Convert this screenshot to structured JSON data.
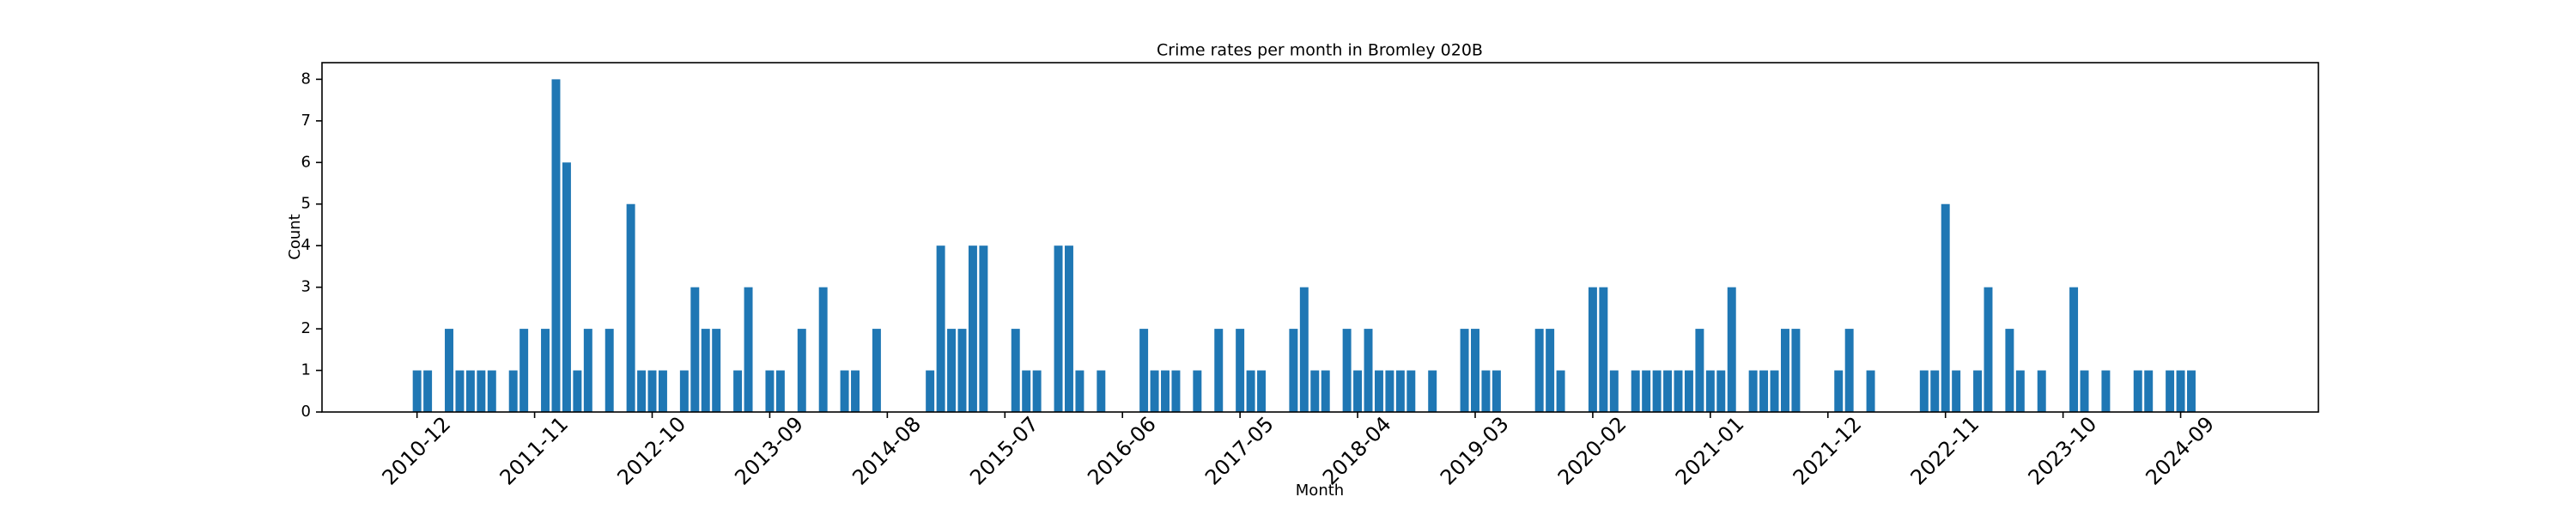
{
  "chart_data": {
    "type": "bar",
    "title": "Crime rates per month in Bromley 020B",
    "x_label": "Month",
    "y_label": "Count",
    "categories": [
      "2010-12",
      null,
      null,
      null,
      null,
      null,
      null,
      null,
      null,
      null,
      null,
      "2011-11",
      null,
      null,
      null,
      null,
      null,
      null,
      null,
      null,
      null,
      null,
      "2012-10",
      null,
      null,
      null,
      null,
      null,
      null,
      null,
      null,
      null,
      null,
      "2013-09",
      null,
      null,
      null,
      null,
      null,
      null,
      null,
      null,
      null,
      null,
      "2014-08",
      null,
      null,
      null,
      null,
      null,
      null,
      null,
      null,
      null,
      null,
      "2015-07",
      null,
      null,
      null,
      null,
      null,
      null,
      null,
      null,
      null,
      null,
      "2016-06",
      null,
      null,
      null,
      null,
      null,
      null,
      null,
      null,
      null,
      null,
      "2017-05",
      null,
      null,
      null,
      null,
      null,
      null,
      null,
      null,
      null,
      null,
      "2018-04",
      null,
      null,
      null,
      null,
      null,
      null,
      null,
      null,
      null,
      null,
      "2019-03",
      null,
      null,
      null,
      null,
      null,
      null,
      null,
      null,
      null,
      null,
      "2020-02",
      null,
      null,
      null,
      null,
      null,
      null,
      null,
      null,
      null,
      null,
      "2021-01",
      null,
      null,
      null,
      null,
      null,
      null,
      null,
      null,
      null,
      null,
      "2021-12",
      null,
      null,
      null,
      null,
      null,
      null,
      null,
      null,
      null,
      null,
      "2022-11",
      null,
      null,
      null,
      null,
      null,
      null,
      null,
      null,
      null,
      null,
      "2023-10",
      null,
      null,
      null,
      null,
      null,
      null,
      null,
      null,
      null,
      null,
      "2024-09",
      null,
      null,
      null,
      null
    ],
    "values": [
      1,
      1,
      0,
      2,
      1,
      1,
      1,
      1,
      0,
      1,
      2,
      0,
      2,
      8,
      6,
      1,
      2,
      0,
      2,
      0,
      5,
      1,
      1,
      1,
      0,
      1,
      3,
      2,
      2,
      0,
      1,
      3,
      0,
      1,
      1,
      0,
      2,
      0,
      3,
      0,
      1,
      1,
      0,
      2,
      0,
      0,
      0,
      0,
      1,
      4,
      2,
      2,
      4,
      4,
      0,
      0,
      2,
      1,
      1,
      0,
      4,
      4,
      1,
      0,
      1,
      0,
      0,
      0,
      2,
      1,
      1,
      1,
      0,
      1,
      0,
      2,
      0,
      2,
      1,
      1,
      0,
      0,
      2,
      3,
      1,
      1,
      0,
      2,
      1,
      2,
      1,
      1,
      1,
      1,
      0,
      1,
      0,
      0,
      2,
      2,
      1,
      1,
      0,
      0,
      0,
      2,
      2,
      1,
      0,
      0,
      3,
      3,
      1,
      0,
      1,
      1,
      1,
      1,
      1,
      1,
      2,
      1,
      1,
      3,
      0,
      1,
      1,
      1,
      2,
      2,
      0,
      0,
      0,
      1,
      2,
      0,
      1,
      0,
      0,
      0,
      0,
      1,
      1,
      5,
      1,
      0,
      1,
      3,
      0,
      2,
      1,
      0,
      1,
      0,
      0,
      3,
      1,
      0,
      1,
      0,
      0,
      1,
      1,
      0,
      1,
      1,
      1,
      0,
      0,
      0
    ],
    "color": "#1f77b4",
    "ylim": [
      0,
      8.4
    ],
    "yticks": [
      0,
      1,
      2,
      3,
      4,
      5,
      6,
      7,
      8
    ]
  }
}
